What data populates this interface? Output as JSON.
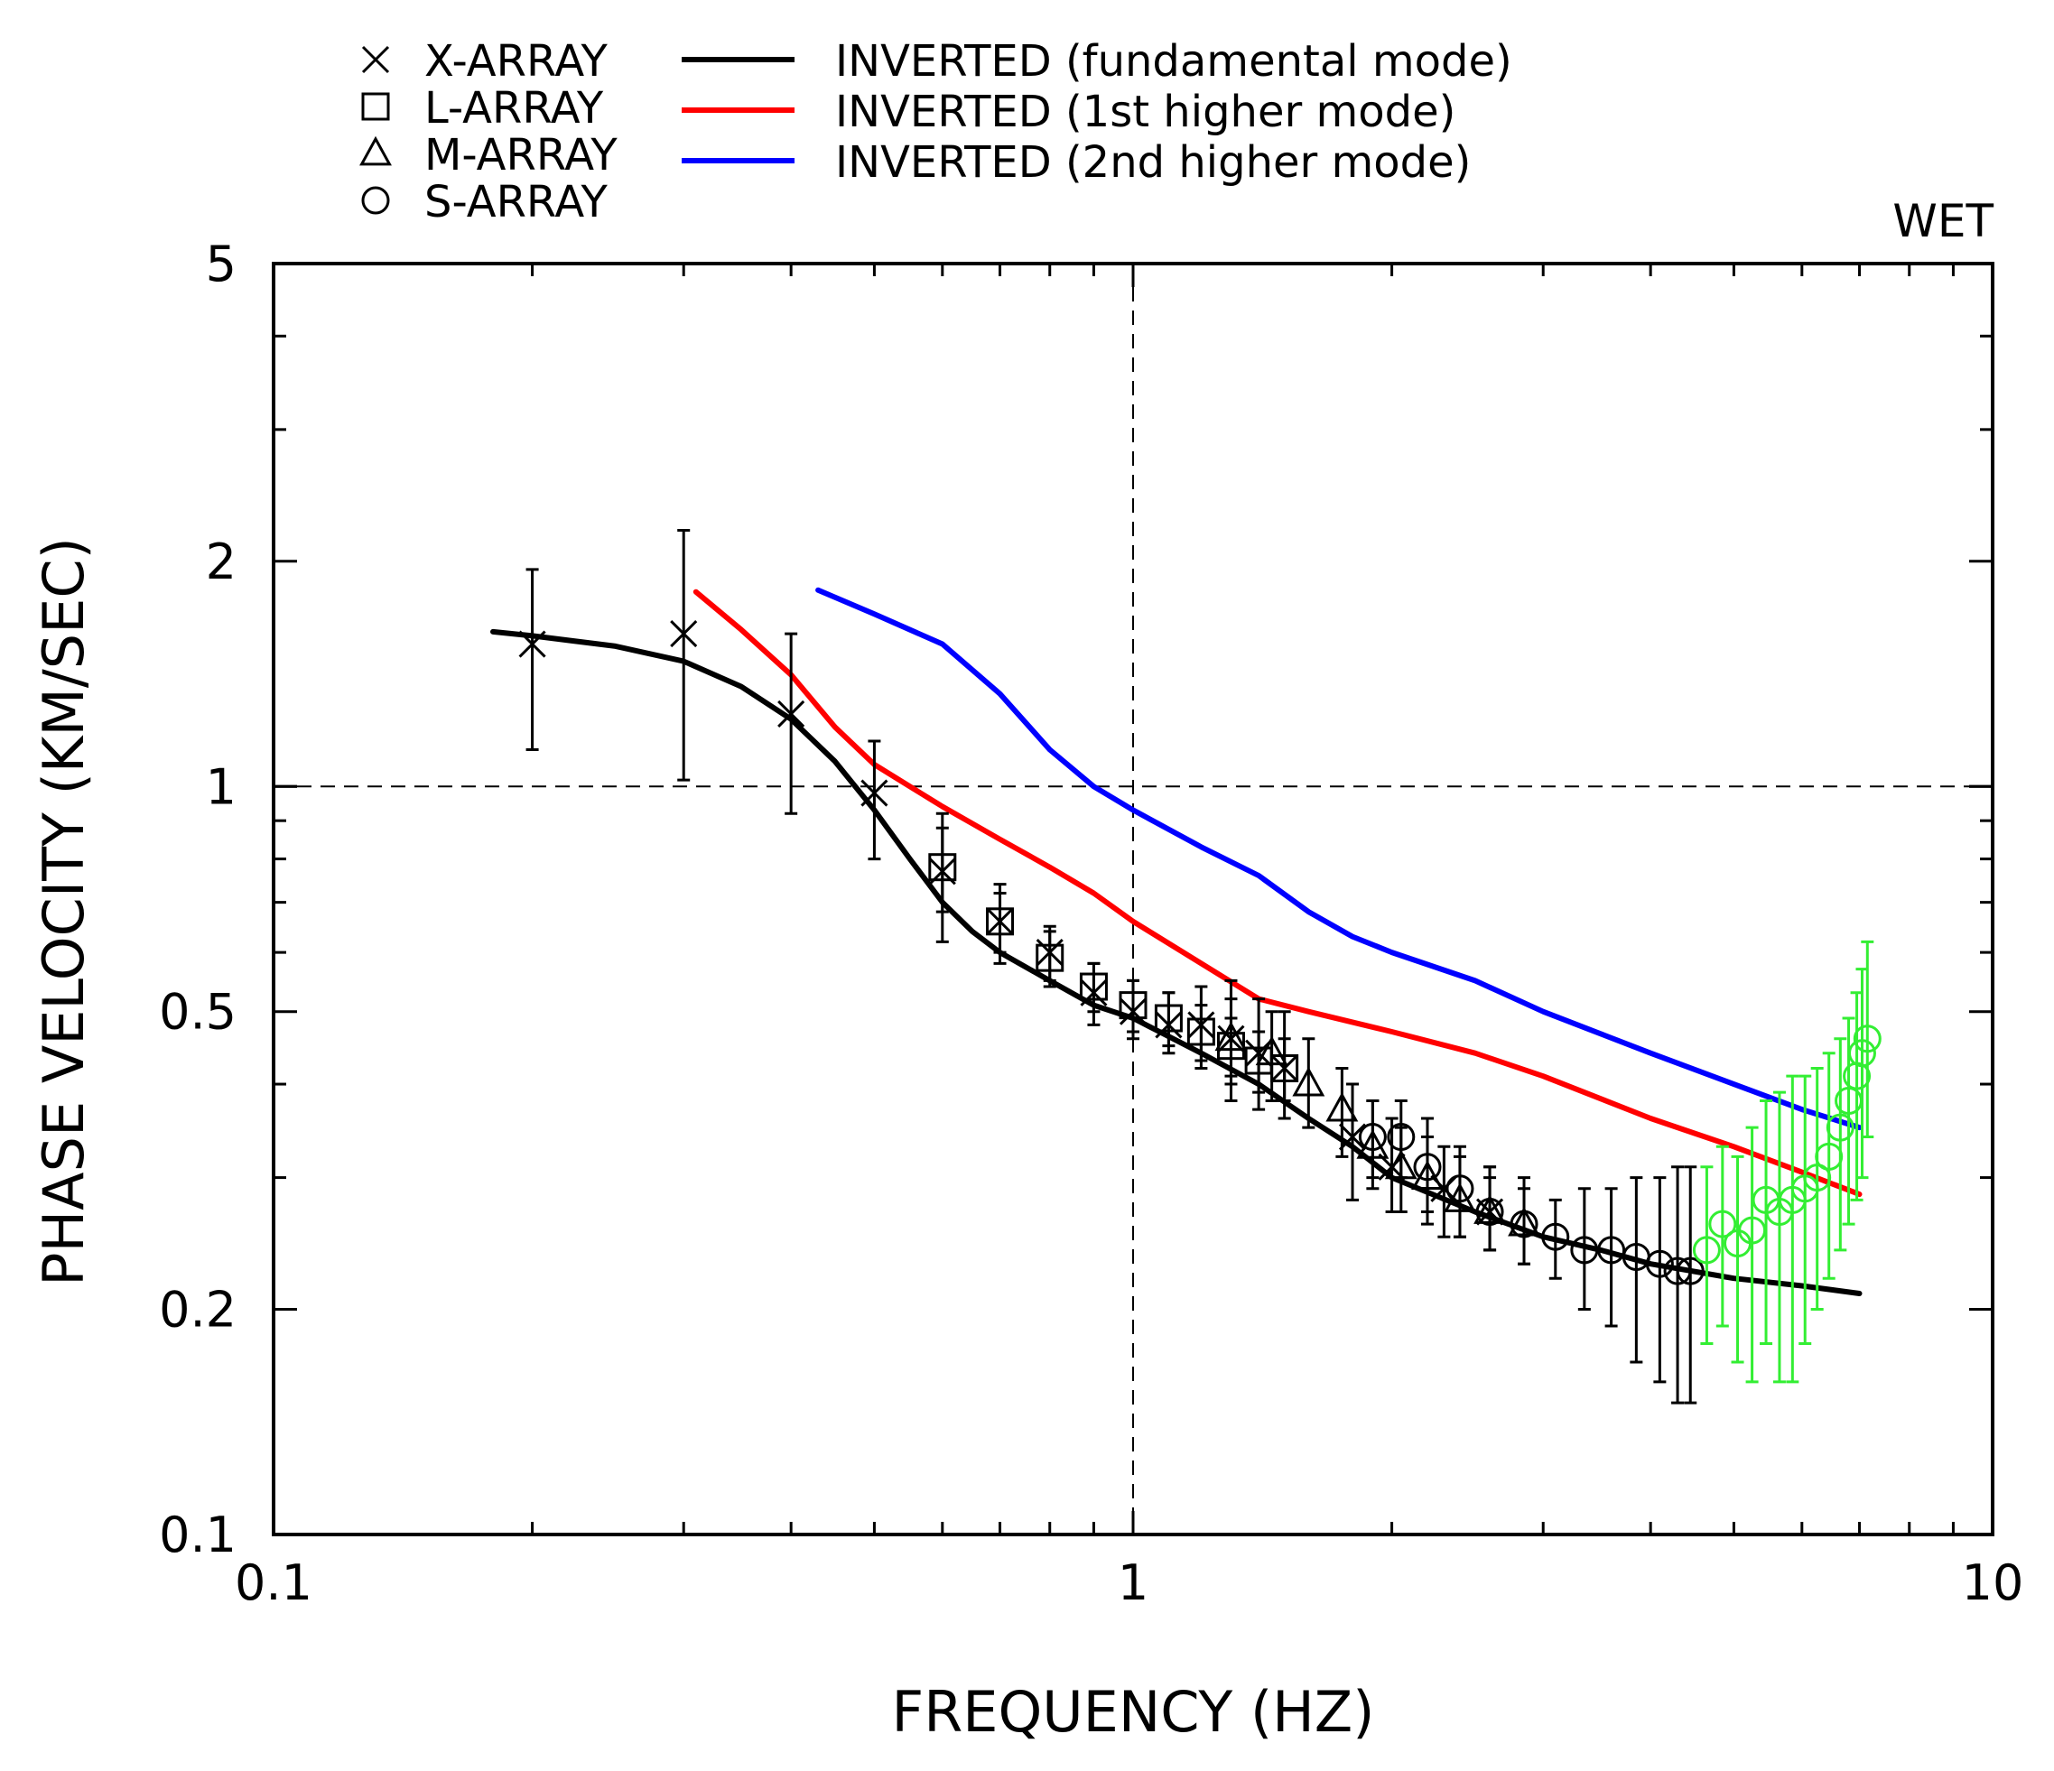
{
  "chart_data": {
    "type": "line",
    "x_scale": "log",
    "y_scale": "log",
    "xlim": [
      0.1,
      10
    ],
    "ylim": [
      0.1,
      5
    ],
    "xlabel": "FREQUENCY (HZ)",
    "ylabel": "PHASE VELOCITY (KM/SEC)",
    "annotation": "WET",
    "x_ticks": [
      0.1,
      1,
      10
    ],
    "x_tick_labels": [
      "0.1",
      "1",
      "10"
    ],
    "y_ticks": [
      0.1,
      0.2,
      0.5,
      1,
      2,
      5
    ],
    "y_tick_labels": [
      "0.1",
      "0.2",
      "0.5",
      "1",
      "2",
      "5"
    ],
    "reference_lines": {
      "x": 1,
      "y": 1
    },
    "legend": {
      "markers": [
        {
          "symbol": "cross",
          "label": "X-ARRAY"
        },
        {
          "symbol": "square",
          "label": "L-ARRAY"
        },
        {
          "symbol": "triangle",
          "label": "M-ARRAY"
        },
        {
          "symbol": "circle",
          "label": "S-ARRAY"
        }
      ],
      "lines": [
        {
          "color": "#000000",
          "label": "INVERTED (fundamental mode)"
        },
        {
          "color": "#ff0000",
          "label": "INVERTED (1st higher mode)"
        },
        {
          "color": "#0000ff",
          "label": "INVERTED (2nd higher mode)"
        }
      ]
    },
    "series_lines": [
      {
        "name": "INVERTED (fundamental mode)",
        "color": "#000000",
        "x": [
          0.18,
          0.2,
          0.25,
          0.3,
          0.35,
          0.4,
          0.45,
          0.5,
          0.55,
          0.6,
          0.65,
          0.7,
          0.8,
          0.9,
          1.0,
          1.2,
          1.4,
          1.6,
          1.8,
          2.0,
          2.5,
          3.0,
          3.5,
          4.0,
          5.0,
          6.0,
          7.0
        ],
        "y": [
          1.61,
          1.59,
          1.54,
          1.47,
          1.36,
          1.23,
          1.08,
          0.93,
          0.8,
          0.7,
          0.64,
          0.6,
          0.55,
          0.51,
          0.49,
          0.44,
          0.4,
          0.36,
          0.33,
          0.3,
          0.27,
          0.25,
          0.24,
          0.23,
          0.22,
          0.215,
          0.21
        ]
      },
      {
        "name": "INVERTED (1st higher mode)",
        "color": "#ff0000",
        "x": [
          0.31,
          0.35,
          0.4,
          0.45,
          0.5,
          0.55,
          0.6,
          0.7,
          0.8,
          0.9,
          1.0,
          1.2,
          1.4,
          1.6,
          2.0,
          2.5,
          3.0,
          4.0,
          5.0,
          6.0,
          7.0
        ],
        "y": [
          1.82,
          1.62,
          1.41,
          1.2,
          1.07,
          1.0,
          0.94,
          0.85,
          0.78,
          0.72,
          0.66,
          0.58,
          0.52,
          0.5,
          0.47,
          0.44,
          0.41,
          0.36,
          0.33,
          0.305,
          0.285
        ]
      },
      {
        "name": "INVERTED (2nd higher mode)",
        "color": "#0000ff",
        "x": [
          0.43,
          0.5,
          0.6,
          0.7,
          0.8,
          0.9,
          1.0,
          1.2,
          1.4,
          1.6,
          1.8,
          2.0,
          2.5,
          3.0,
          4.0,
          5.0,
          6.0,
          7.0
        ],
        "y": [
          1.83,
          1.7,
          1.55,
          1.33,
          1.12,
          1.0,
          0.93,
          0.83,
          0.76,
          0.68,
          0.63,
          0.6,
          0.55,
          0.5,
          0.44,
          0.4,
          0.37,
          0.35
        ]
      }
    ],
    "series_points": [
      {
        "name": "X-ARRAY",
        "symbol": "cross",
        "color": "#000000",
        "points": [
          {
            "x": 0.2,
            "y": 1.55,
            "lo": 1.12,
            "hi": 1.95
          },
          {
            "x": 0.3,
            "y": 1.6,
            "lo": 1.02,
            "hi": 2.2
          },
          {
            "x": 0.4,
            "y": 1.25,
            "lo": 0.92,
            "hi": 1.6
          },
          {
            "x": 0.5,
            "y": 0.98,
            "lo": 0.8,
            "hi": 1.15
          },
          {
            "x": 0.6,
            "y": 0.77,
            "lo": 0.62,
            "hi": 0.92
          },
          {
            "x": 0.7,
            "y": 0.66,
            "lo": 0.58,
            "hi": 0.74
          },
          {
            "x": 0.8,
            "y": 0.6,
            "lo": 0.54,
            "hi": 0.65
          },
          {
            "x": 0.9,
            "y": 0.53,
            "lo": 0.48,
            "hi": 0.58
          },
          {
            "x": 1.0,
            "y": 0.5,
            "lo": 0.46,
            "hi": 0.55
          },
          {
            "x": 1.1,
            "y": 0.48,
            "lo": 0.44,
            "hi": 0.53
          },
          {
            "x": 1.2,
            "y": 0.48,
            "lo": 0.42,
            "hi": 0.54
          },
          {
            "x": 1.3,
            "y": 0.46,
            "lo": 0.38,
            "hi": 0.55
          },
          {
            "x": 1.4,
            "y": 0.44,
            "lo": 0.37,
            "hi": 0.52
          },
          {
            "x": 1.5,
            "y": 0.42,
            "lo": 0.36,
            "hi": 0.5
          },
          {
            "x": 1.8,
            "y": 0.34,
            "lo": 0.28,
            "hi": 0.4
          },
          {
            "x": 2.0,
            "y": 0.31,
            "lo": 0.27,
            "hi": 0.36
          },
          {
            "x": 2.3,
            "y": 0.29,
            "lo": 0.25,
            "hi": 0.33
          },
          {
            "x": 2.6,
            "y": 0.27,
            "lo": 0.24,
            "hi": 0.31
          }
        ]
      },
      {
        "name": "L-ARRAY",
        "symbol": "square",
        "color": "#000000",
        "points": [
          {
            "x": 0.6,
            "y": 0.78,
            "lo": 0.68,
            "hi": 0.88
          },
          {
            "x": 0.7,
            "y": 0.66,
            "lo": 0.6,
            "hi": 0.72
          },
          {
            "x": 0.8,
            "y": 0.59,
            "lo": 0.55,
            "hi": 0.64
          },
          {
            "x": 0.9,
            "y": 0.54,
            "lo": 0.5,
            "hi": 0.58
          },
          {
            "x": 1.0,
            "y": 0.51,
            "lo": 0.47,
            "hi": 0.55
          },
          {
            "x": 1.1,
            "y": 0.49,
            "lo": 0.45,
            "hi": 0.53
          },
          {
            "x": 1.2,
            "y": 0.47,
            "lo": 0.43,
            "hi": 0.51
          },
          {
            "x": 1.3,
            "y": 0.45,
            "lo": 0.41,
            "hi": 0.49
          },
          {
            "x": 1.4,
            "y": 0.43,
            "lo": 0.39,
            "hi": 0.47
          },
          {
            "x": 1.5,
            "y": 0.42,
            "lo": 0.38,
            "hi": 0.46
          }
        ]
      },
      {
        "name": "M-ARRAY",
        "symbol": "triangle",
        "color": "#000000",
        "points": [
          {
            "x": 1.3,
            "y": 0.46,
            "lo": 0.4,
            "hi": 0.52
          },
          {
            "x": 1.45,
            "y": 0.44,
            "lo": 0.38,
            "hi": 0.5
          },
          {
            "x": 1.6,
            "y": 0.4,
            "lo": 0.35,
            "hi": 0.46
          },
          {
            "x": 1.75,
            "y": 0.37,
            "lo": 0.32,
            "hi": 0.42
          },
          {
            "x": 1.9,
            "y": 0.33,
            "lo": 0.29,
            "hi": 0.38
          },
          {
            "x": 2.05,
            "y": 0.31,
            "lo": 0.27,
            "hi": 0.35
          },
          {
            "x": 2.2,
            "y": 0.3,
            "lo": 0.26,
            "hi": 0.34
          },
          {
            "x": 2.4,
            "y": 0.28,
            "lo": 0.25,
            "hi": 0.32
          },
          {
            "x": 2.6,
            "y": 0.27,
            "lo": 0.24,
            "hi": 0.3
          },
          {
            "x": 2.85,
            "y": 0.26,
            "lo": 0.23,
            "hi": 0.29
          }
        ]
      },
      {
        "name": "S-ARRAY",
        "symbol": "circle",
        "color": "#000000",
        "points": [
          {
            "x": 1.9,
            "y": 0.34,
            "lo": 0.3,
            "hi": 0.38
          },
          {
            "x": 2.05,
            "y": 0.34,
            "lo": 0.3,
            "hi": 0.38
          },
          {
            "x": 2.2,
            "y": 0.31,
            "lo": 0.27,
            "hi": 0.36
          },
          {
            "x": 2.4,
            "y": 0.29,
            "lo": 0.25,
            "hi": 0.33
          },
          {
            "x": 2.6,
            "y": 0.27,
            "lo": 0.24,
            "hi": 0.31
          },
          {
            "x": 2.85,
            "y": 0.26,
            "lo": 0.23,
            "hi": 0.3
          },
          {
            "x": 3.1,
            "y": 0.25,
            "lo": 0.22,
            "hi": 0.28
          },
          {
            "x": 3.35,
            "y": 0.24,
            "lo": 0.2,
            "hi": 0.29
          },
          {
            "x": 3.6,
            "y": 0.24,
            "lo": 0.19,
            "hi": 0.29
          },
          {
            "x": 3.85,
            "y": 0.235,
            "lo": 0.17,
            "hi": 0.3
          },
          {
            "x": 4.1,
            "y": 0.23,
            "lo": 0.16,
            "hi": 0.3
          },
          {
            "x": 4.3,
            "y": 0.225,
            "lo": 0.15,
            "hi": 0.31
          },
          {
            "x": 4.45,
            "y": 0.225,
            "lo": 0.15,
            "hi": 0.31
          }
        ]
      },
      {
        "name": "S-ARRAY",
        "symbol": "circle",
        "color": "#33ee33",
        "points": [
          {
            "x": 4.65,
            "y": 0.24,
            "lo": 0.18,
            "hi": 0.31
          },
          {
            "x": 4.85,
            "y": 0.26,
            "lo": 0.19,
            "hi": 0.33
          },
          {
            "x": 5.05,
            "y": 0.245,
            "lo": 0.17,
            "hi": 0.32
          },
          {
            "x": 5.25,
            "y": 0.255,
            "lo": 0.16,
            "hi": 0.35
          },
          {
            "x": 5.45,
            "y": 0.28,
            "lo": 0.18,
            "hi": 0.38
          },
          {
            "x": 5.65,
            "y": 0.27,
            "lo": 0.16,
            "hi": 0.39
          },
          {
            "x": 5.85,
            "y": 0.28,
            "lo": 0.16,
            "hi": 0.41
          },
          {
            "x": 6.05,
            "y": 0.29,
            "lo": 0.18,
            "hi": 0.41
          },
          {
            "x": 6.25,
            "y": 0.3,
            "lo": 0.2,
            "hi": 0.42
          },
          {
            "x": 6.45,
            "y": 0.32,
            "lo": 0.22,
            "hi": 0.44
          },
          {
            "x": 6.65,
            "y": 0.35,
            "lo": 0.24,
            "hi": 0.46
          },
          {
            "x": 6.8,
            "y": 0.38,
            "lo": 0.26,
            "hi": 0.49
          },
          {
            "x": 6.95,
            "y": 0.41,
            "lo": 0.28,
            "hi": 0.53
          },
          {
            "x": 7.05,
            "y": 0.44,
            "lo": 0.3,
            "hi": 0.57
          },
          {
            "x": 7.15,
            "y": 0.46,
            "lo": 0.34,
            "hi": 0.62
          }
        ]
      }
    ]
  }
}
